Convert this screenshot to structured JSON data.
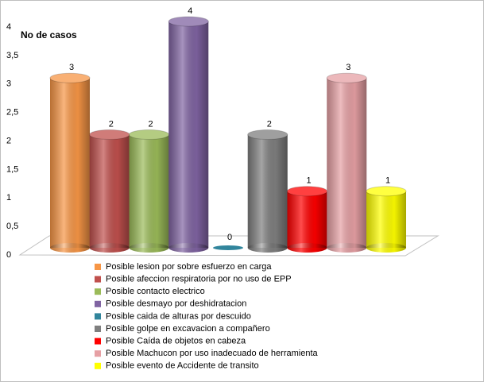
{
  "chart_data": {
    "type": "bar",
    "y_label": "No de casos",
    "categories": [
      "Posible lesion por sobre esfuerzo en carga",
      "Posible afeccion respiratoria por no uso de EPP",
      "Posible contacto electrico",
      "Posible desmayo por deshidratacion",
      "Posible caida de alturas por descuido",
      "Posible golpe en excavacion a compañero",
      "Posible Caída de objetos en cabeza",
      "Posible Machucon por uso inadecuado de herramienta",
      "Posible evento de Accidente de transito"
    ],
    "values": [
      3,
      2,
      2,
      4,
      0,
      2,
      1,
      3,
      1
    ],
    "colors": [
      "#f79646",
      "#c0504d",
      "#9bbb59",
      "#8064a2",
      "#31859c",
      "#7f7f7f",
      "#ff0000",
      "#e6a0a4",
      "#ffff00"
    ],
    "ylim": [
      0,
      4
    ],
    "yticks": [
      0,
      {
        "value": 0.5,
        "label": "0,5"
      },
      1,
      {
        "value": 1.5,
        "label": "1,5"
      },
      2,
      {
        "value": 2.5,
        "label": "2,5"
      },
      3,
      {
        "value": 3.5,
        "label": "3,5"
      },
      4
    ],
    "grid": false
  }
}
